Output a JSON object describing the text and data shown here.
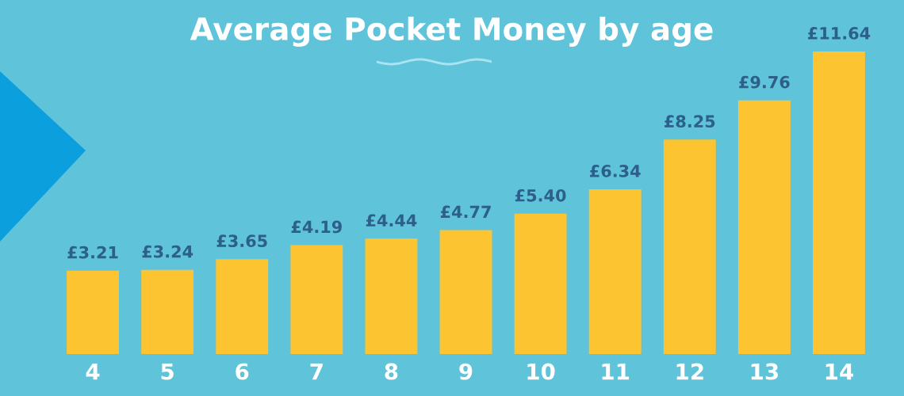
{
  "chart_data": {
    "type": "bar",
    "title": "Average Pocket Money by age",
    "categories": [
      "4",
      "5",
      "6",
      "7",
      "8",
      "9",
      "10",
      "11",
      "12",
      "13",
      "14"
    ],
    "values": [
      3.21,
      3.24,
      3.65,
      4.19,
      4.44,
      4.77,
      5.4,
      6.34,
      8.25,
      9.76,
      11.64
    ],
    "value_labels": [
      "£3.21",
      "£3.24",
      "£3.65",
      "£4.19",
      "£4.44",
      "£4.77",
      "£5.40",
      "£6.34",
      "£8.25",
      "£9.76",
      "£11.64"
    ],
    "color": "#fdc431",
    "grid": false,
    "tick_labels": "x"
  }
}
